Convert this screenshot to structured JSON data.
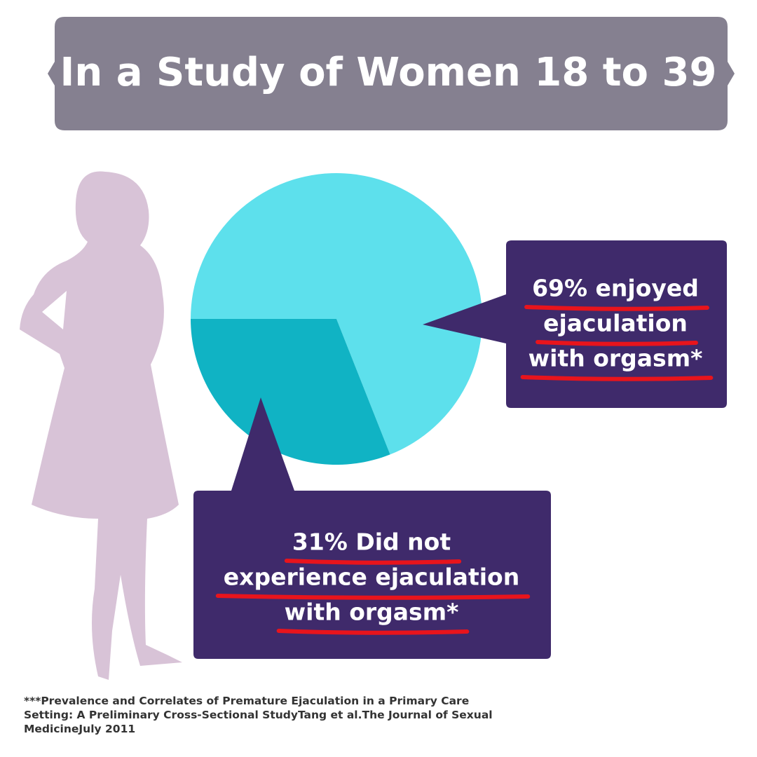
{
  "chart_data": {
    "type": "pie",
    "title": "In a Study of Women 18 to 39",
    "values": [
      69,
      31
    ],
    "colors": [
      "#5de0ec",
      "#10b3c4"
    ],
    "value_labels": [
      [
        "69% enjoyed",
        "ejaculation",
        "with orgasm*"
      ],
      [
        "31% Did not",
        "experience ejaculation",
        "with orgasm*"
      ]
    ],
    "footnote": "***Prevalence and Correlates of Premature Ejaculation in a Primary Care Setting: A Preliminary Cross-Sectional StudyTang et al.The Journal of Sexual MedicineJuly 2011"
  }
}
